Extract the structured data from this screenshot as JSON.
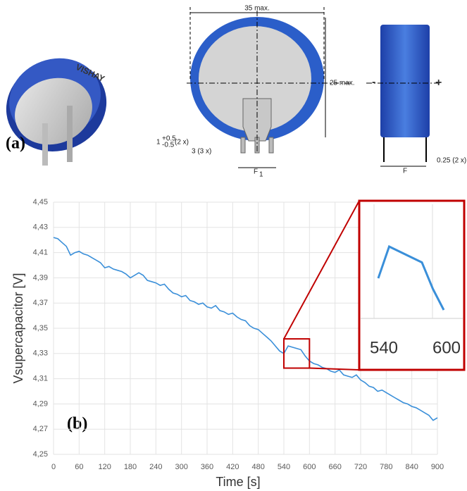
{
  "panel_a": {
    "label": "(a)",
    "brand": "VISHAY",
    "width_dim": "35 max.",
    "height_dim": "25 max.",
    "pin_dim": "1",
    "pin_tol_plus": "+0.5",
    "pin_tol_minus": "-0.5",
    "pin_count": "(2 x)",
    "lead_dim": "3 (3 x)",
    "pitch_f": "F",
    "pitch_sub": "1",
    "side_minus": "-",
    "side_plus": "+",
    "side_pitch": "F",
    "lead_thickness": "0.25 (2 x)"
  },
  "chart_data": {
    "type": "line",
    "panel_label": "(b)",
    "xlabel": "Time [s]",
    "ylabel": "Vsupercapacitor [V]",
    "color": "#3a8fd9",
    "zoom_color": "#c00000",
    "x": [
      0,
      10,
      20,
      30,
      40,
      50,
      60,
      70,
      80,
      90,
      100,
      110,
      120,
      130,
      140,
      150,
      160,
      170,
      180,
      190,
      200,
      210,
      220,
      230,
      240,
      250,
      260,
      270,
      280,
      290,
      300,
      310,
      320,
      330,
      340,
      350,
      360,
      370,
      380,
      390,
      400,
      410,
      420,
      430,
      440,
      450,
      460,
      470,
      480,
      490,
      500,
      510,
      520,
      530,
      540,
      550,
      560,
      570,
      580,
      590,
      600,
      610,
      620,
      630,
      640,
      650,
      660,
      670,
      680,
      690,
      700,
      710,
      720,
      730,
      740,
      750,
      760,
      770,
      780,
      790,
      800,
      810,
      820,
      830,
      840,
      850,
      860,
      870,
      880,
      890,
      900
    ],
    "values": [
      4.422,
      4.421,
      4.418,
      4.415,
      4.408,
      4.41,
      4.411,
      4.409,
      4.408,
      4.406,
      4.404,
      4.402,
      4.398,
      4.399,
      4.397,
      4.396,
      4.395,
      4.393,
      4.39,
      4.392,
      4.394,
      4.392,
      4.388,
      4.387,
      4.386,
      4.384,
      4.385,
      4.381,
      4.378,
      4.377,
      4.375,
      4.376,
      4.372,
      4.371,
      4.369,
      4.37,
      4.367,
      4.366,
      4.368,
      4.364,
      4.363,
      4.361,
      4.362,
      4.359,
      4.357,
      4.356,
      4.352,
      4.35,
      4.349,
      4.346,
      4.343,
      4.34,
      4.336,
      4.332,
      4.33,
      4.336,
      4.335,
      4.334,
      4.333,
      4.328,
      4.324,
      4.322,
      4.321,
      4.319,
      4.318,
      4.316,
      4.315,
      4.317,
      4.313,
      4.312,
      4.311,
      4.313,
      4.309,
      4.307,
      4.304,
      4.303,
      4.3,
      4.301,
      4.299,
      4.297,
      4.295,
      4.293,
      4.291,
      4.29,
      4.288,
      4.287,
      4.285,
      4.283,
      4.281,
      4.277,
      4.279
    ],
    "xlim": [
      0,
      900
    ],
    "xticks": [
      0,
      60,
      120,
      180,
      240,
      300,
      360,
      420,
      480,
      540,
      600,
      660,
      720,
      780,
      840,
      900
    ],
    "ylim": [
      4.25,
      4.45
    ],
    "yticks": [
      {
        "value": 4.25,
        "label": "4,25"
      },
      {
        "value": 4.27,
        "label": "4,27"
      },
      {
        "value": 4.29,
        "label": "4,29"
      },
      {
        "value": 4.31,
        "label": "4,31"
      },
      {
        "value": 4.33,
        "label": "4,33"
      },
      {
        "value": 4.35,
        "label": "4,35"
      },
      {
        "value": 4.37,
        "label": "4,37"
      },
      {
        "value": 4.39,
        "label": "4,39"
      },
      {
        "value": 4.41,
        "label": "4,41"
      },
      {
        "value": 4.43,
        "label": "4,43"
      },
      {
        "value": 4.45,
        "label": "4,45"
      }
    ],
    "grid": true,
    "inset_xticks": [
      540,
      600
    ]
  }
}
